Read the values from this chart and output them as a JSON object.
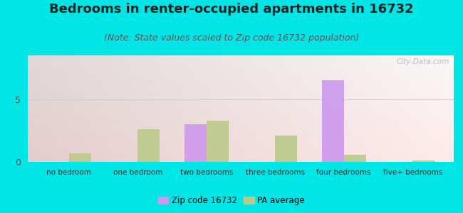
{
  "title": "Bedrooms in renter-occupied apartments in 16732",
  "subtitle": "(Note: State values scaled to Zip code 16732 population)",
  "categories": [
    "no bedroom",
    "one bedroom",
    "two bedrooms",
    "three bedrooms",
    "four bedrooms",
    "five+ bedrooms"
  ],
  "zip_values": [
    0,
    0,
    3.0,
    0,
    6.5,
    0
  ],
  "pa_values": [
    0.7,
    2.6,
    3.3,
    2.1,
    0.55,
    0.1
  ],
  "zip_color": "#cc99ee",
  "pa_color": "#bbc98a",
  "background_outer": "#00e5e5",
  "ylim": [
    0,
    8.5
  ],
  "yticks": [
    0,
    5
  ],
  "bar_width": 0.32,
  "legend_zip": "Zip code 16732",
  "legend_pa": "PA average",
  "title_fontsize": 13,
  "subtitle_fontsize": 9,
  "tick_fontsize": 7.5,
  "ytick_fontsize": 9
}
